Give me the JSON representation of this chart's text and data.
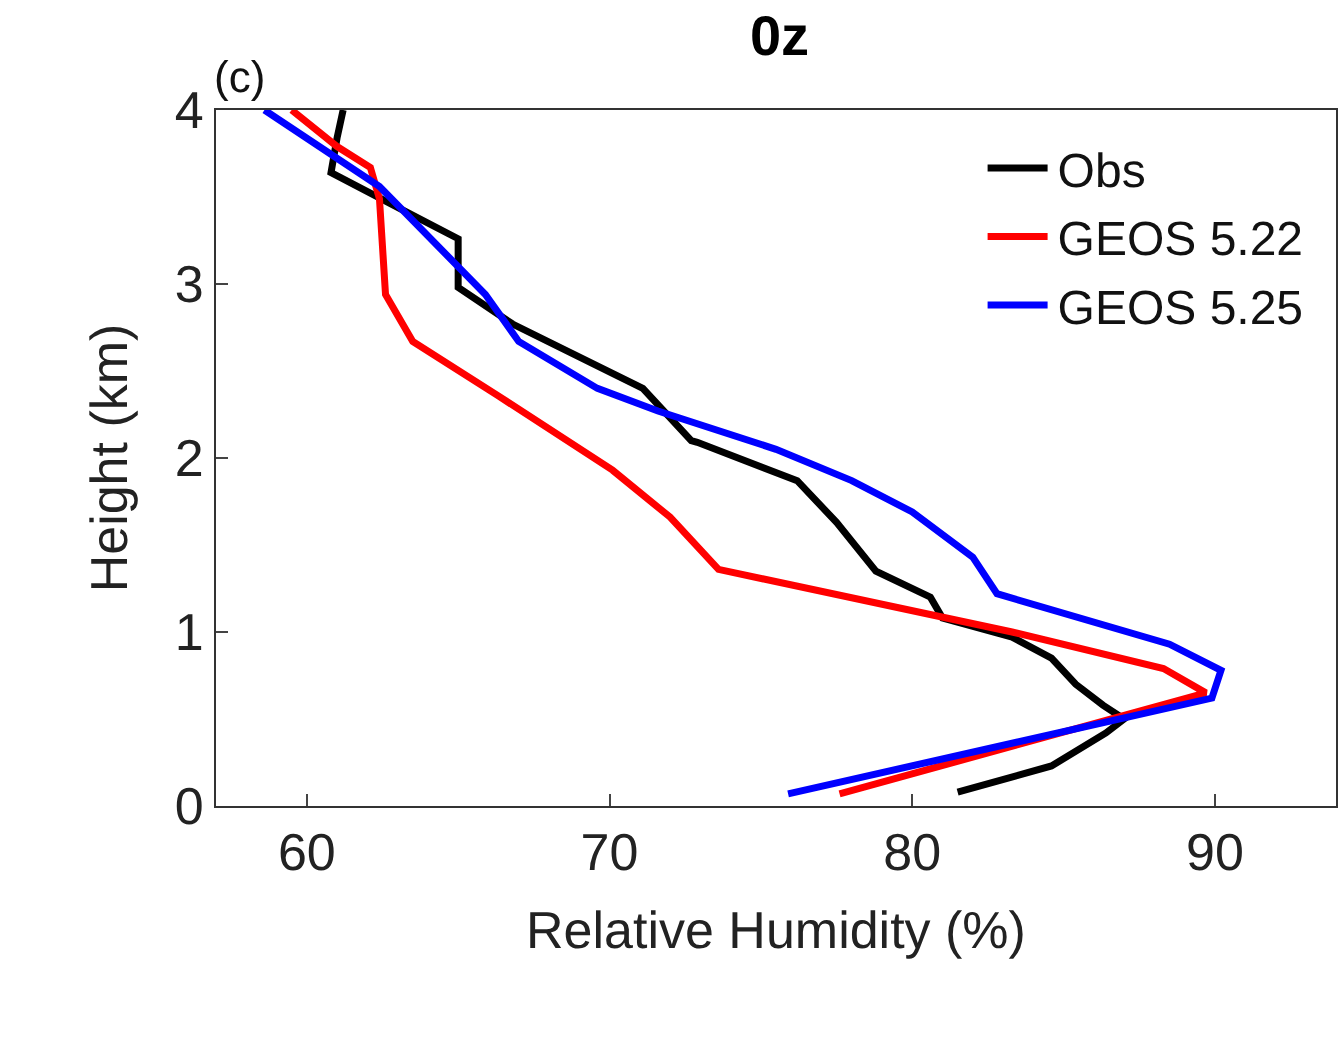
{
  "chart_data": {
    "type": "line",
    "title": "0z",
    "xlabel": "Relative Humidity (%)",
    "ylabel": "Height (km)",
    "annotations": [
      "(c)"
    ],
    "xlim": [
      57,
      94
    ],
    "xticks": [
      60,
      70,
      80,
      90
    ],
    "ylim": [
      0,
      4
    ],
    "yticks": [
      0,
      1,
      2,
      3,
      4
    ],
    "legend": "top right",
    "line_style": "solid",
    "marker": "none",
    "series": [
      {
        "name": "Obs",
        "color": "#000000",
        "x": [
          81.5,
          84.6,
          86.4,
          87.0,
          86.3,
          85.4,
          84.6,
          83.3,
          81.0,
          80.6,
          78.8,
          77.5,
          76.2,
          72.9,
          72.7,
          71.1,
          66.8,
          65.0,
          65.0,
          63.0,
          60.8,
          61.0,
          61.2
        ],
        "values": [
          0.08,
          0.23,
          0.42,
          0.5,
          0.58,
          0.7,
          0.85,
          0.97,
          1.08,
          1.2,
          1.35,
          1.63,
          1.87,
          2.09,
          2.1,
          2.4,
          2.77,
          2.98,
          3.26,
          3.44,
          3.64,
          3.84,
          4.0
        ]
      },
      {
        "name": "GEOS 5.22",
        "color": "#ff0000",
        "x": [
          77.6,
          89.7,
          88.3,
          83.3,
          73.6,
          72.0,
          70.1,
          66.3,
          63.5,
          62.6,
          62.4,
          62.1,
          61.0,
          59.5
        ],
        "values": [
          0.07,
          0.65,
          0.79,
          1.0,
          1.36,
          1.66,
          1.93,
          2.36,
          2.67,
          2.94,
          3.49,
          3.67,
          3.79,
          4.0
        ]
      },
      {
        "name": "GEOS 5.25",
        "color": "#0000ff",
        "x": [
          75.9,
          89.9,
          90.2,
          88.5,
          82.8,
          82.0,
          80.0,
          78.0,
          75.5,
          71.6,
          69.6,
          67.0,
          65.9,
          62.4,
          58.6
        ],
        "values": [
          0.07,
          0.62,
          0.78,
          0.93,
          1.22,
          1.43,
          1.69,
          1.87,
          2.05,
          2.27,
          2.4,
          2.67,
          2.94,
          3.56,
          4.0
        ]
      }
    ]
  }
}
